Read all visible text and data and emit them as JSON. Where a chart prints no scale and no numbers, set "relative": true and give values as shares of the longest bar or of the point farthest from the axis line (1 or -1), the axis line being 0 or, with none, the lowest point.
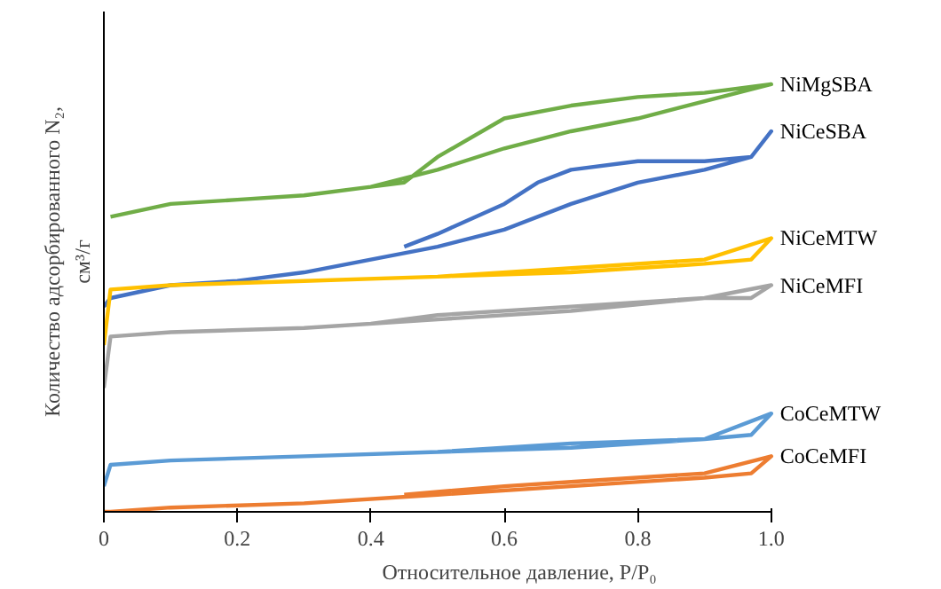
{
  "chart_data": {
    "type": "line",
    "relative": true,
    "xlabel": "Относительное давление, P/P₀",
    "ylabel": "Количество адсорбированного N₂,\nсм³/г",
    "xlim": [
      0,
      1
    ],
    "xticks": [
      0,
      0.2,
      0.4,
      0.6,
      0.8,
      {
        "value": 1,
        "label": "1.0"
      }
    ],
    "grid": false,
    "marker": "none",
    "line_style": "solid",
    "series": [
      {
        "name": "NiMgSBA",
        "color": "#70ad47",
        "x": [
          0.01,
          0.1,
          0.2,
          0.3,
          0.4,
          0.5,
          0.6,
          0.7,
          0.8,
          0.9,
          1.0,
          0.9,
          0.8,
          0.7,
          0.6,
          0.5,
          0.45,
          0.4
        ],
        "values": [
          0.69,
          0.72,
          0.73,
          0.74,
          0.76,
          0.8,
          0.85,
          0.89,
          0.92,
          0.96,
          1.0,
          0.98,
          0.97,
          0.95,
          0.92,
          0.83,
          0.77,
          0.76
        ]
      },
      {
        "name": "NiCeSBA",
        "color": "#4472c4",
        "x": [
          0,
          0.01,
          0.1,
          0.2,
          0.3,
          0.4,
          0.5,
          0.6,
          0.7,
          0.8,
          0.9,
          0.97,
          1.0,
          0.97,
          0.9,
          0.8,
          0.7,
          0.65,
          0.6,
          0.5,
          0.45
        ],
        "values": [
          0.48,
          0.5,
          0.53,
          0.54,
          0.56,
          0.59,
          0.62,
          0.66,
          0.72,
          0.77,
          0.8,
          0.83,
          0.89,
          0.83,
          0.82,
          0.82,
          0.8,
          0.77,
          0.72,
          0.65,
          0.62
        ]
      },
      {
        "name": "NiCeMTW",
        "color": "#ffc000",
        "x": [
          0,
          0.01,
          0.1,
          0.3,
          0.5,
          0.7,
          0.9,
          0.97,
          1.0,
          0.9,
          0.5
        ],
        "values": [
          0.39,
          0.52,
          0.53,
          0.54,
          0.55,
          0.56,
          0.58,
          0.59,
          0.64,
          0.59,
          0.55
        ]
      },
      {
        "name": "NiCeMFI",
        "color": "#a5a5a5",
        "x": [
          0,
          0.01,
          0.1,
          0.3,
          0.5,
          0.7,
          0.9,
          0.97,
          1.0,
          0.9,
          0.7,
          0.5,
          0.4
        ],
        "values": [
          0.29,
          0.41,
          0.42,
          0.43,
          0.45,
          0.47,
          0.5,
          0.5,
          0.53,
          0.5,
          0.48,
          0.46,
          0.44
        ]
      },
      {
        "name": "CoCeMTW",
        "color": "#5b9bd5",
        "x": [
          0,
          0.01,
          0.1,
          0.3,
          0.5,
          0.7,
          0.9,
          0.97,
          1.0,
          0.9,
          0.7,
          0.5
        ],
        "values": [
          0.06,
          0.11,
          0.12,
          0.13,
          0.14,
          0.15,
          0.17,
          0.18,
          0.23,
          0.17,
          0.16,
          0.14
        ]
      },
      {
        "name": "CoCeMFI",
        "color": "#ed7d31",
        "x": [
          0,
          0.01,
          0.1,
          0.3,
          0.5,
          0.7,
          0.9,
          0.97,
          1.0,
          0.9,
          0.7,
          0.6,
          0.45
        ],
        "values": [
          0.0,
          0.0,
          0.01,
          0.02,
          0.04,
          0.06,
          0.08,
          0.09,
          0.13,
          0.09,
          0.07,
          0.06,
          0.04
        ]
      }
    ]
  }
}
